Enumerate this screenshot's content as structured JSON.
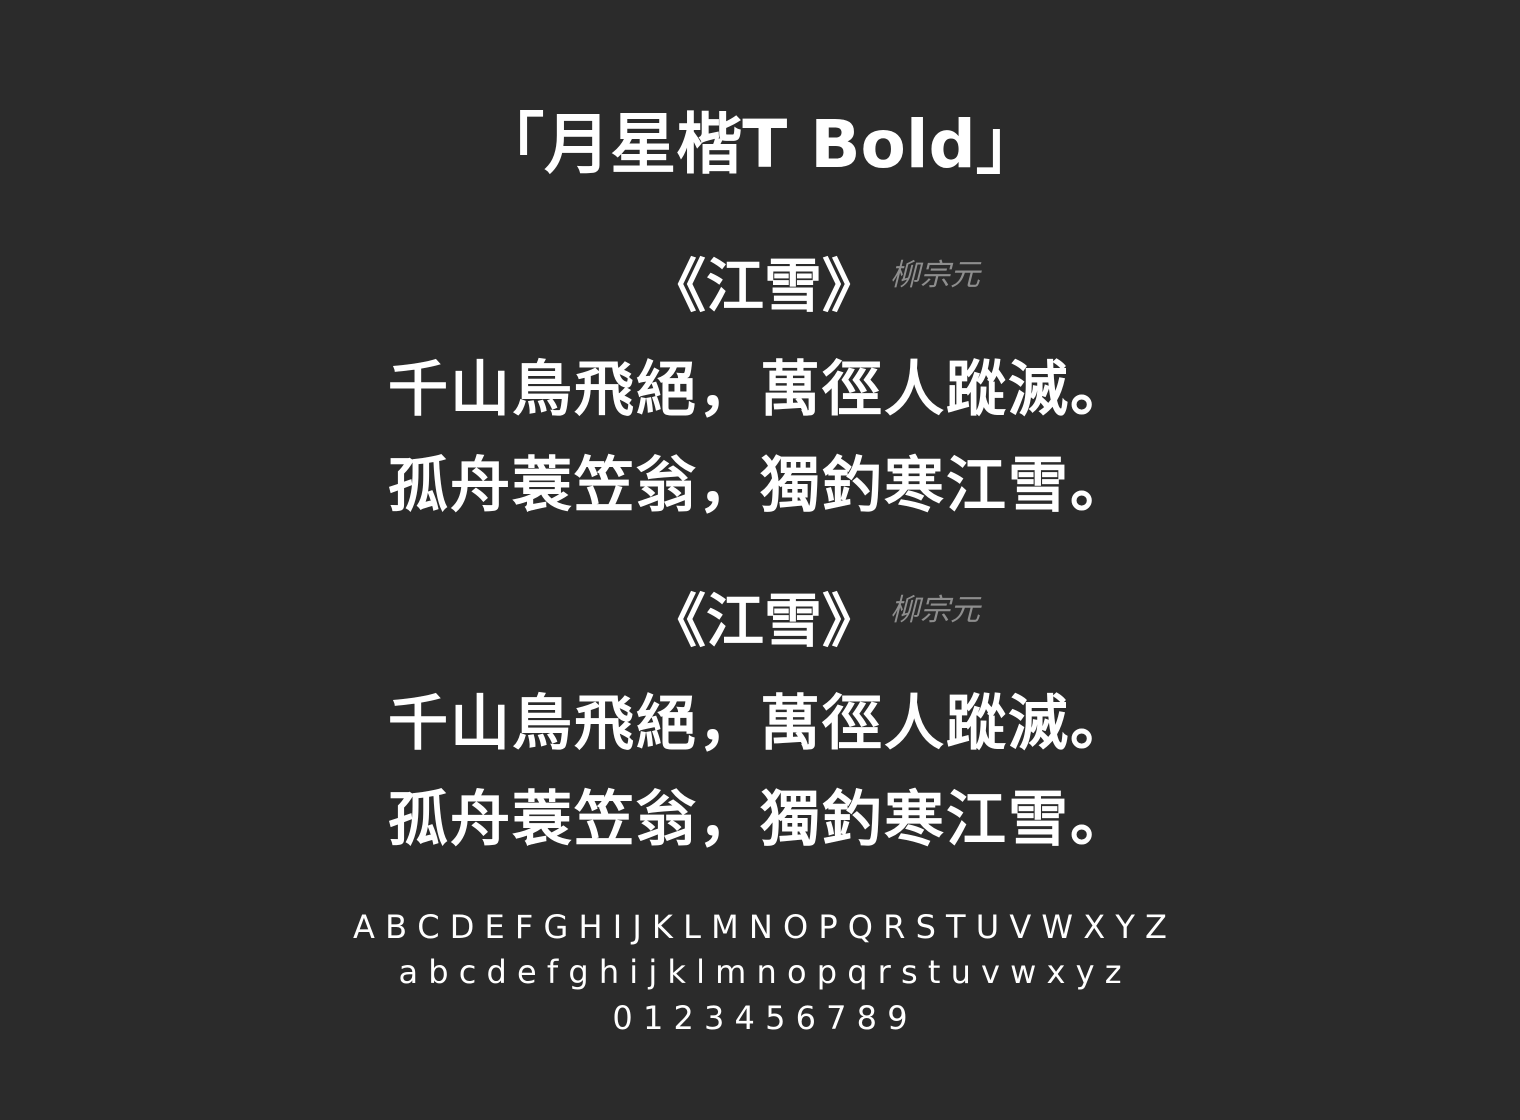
{
  "title": "「月星楷T Bold」",
  "blocks": [
    {
      "poem_title": "《江雪》",
      "author": "柳宗元",
      "lines": [
        "千山鳥飛絕，萬徑人蹤滅。",
        "孤舟蓑笠翁，獨釣寒江雪。"
      ]
    },
    {
      "poem_title": "《江雪》",
      "author": "柳宗元",
      "lines": [
        "千山鳥飛絕，萬徑人蹤滅。",
        "孤舟蓑笠翁，獨釣寒江雪。"
      ]
    }
  ],
  "alphabet": {
    "upper": "A B C D E F G H I J K L M N O P Q R S T U V W X Y Z",
    "lower": "a b c d e f g h i j k l m n o p q r s t u v w x y z",
    "digits": "0 1 2 3 4 5 6 7 8 9"
  }
}
